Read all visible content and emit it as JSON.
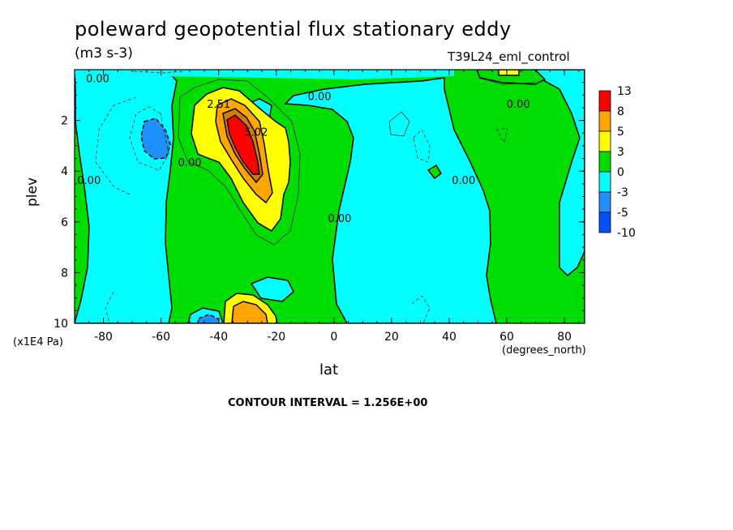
{
  "header": {
    "title": "poleward geopotential flux stationary eddy",
    "units": "(m3 s-3)",
    "run_name": "T39L24_eml_control"
  },
  "footer": {
    "contour_interval": "CONTOUR INTERVAL = 1.256E+00"
  },
  "colors": {
    "cyan": "#00ffff",
    "green": "#00dd00",
    "yellow": "#ffff00",
    "orange": "#ffa500",
    "dark_orange": "#d27d00",
    "red": "#ff0000",
    "blue_mid": "#1e90ff",
    "blue_dark": "#0050ff"
  },
  "chart_data": {
    "type": "heatmap",
    "title": "poleward geopotential flux stationary eddy",
    "subtitle": "(m3 s-3)",
    "xlabel": "lat",
    "x_units": "(degrees_north)",
    "ylabel": "plev",
    "y_units": "(x1E4 Pa)",
    "xlim": [
      -90,
      87
    ],
    "ylim": [
      0,
      10
    ],
    "y_inverted": true,
    "x_ticks": [
      -80,
      -60,
      -40,
      -20,
      0,
      20,
      40,
      60,
      80
    ],
    "x_tick_labels": [
      "-80",
      "-60",
      "-40",
      "-20",
      "0",
      "20",
      "40",
      "60",
      "80"
    ],
    "y_ticks": [
      2,
      4,
      6,
      8,
      10
    ],
    "y_tick_labels": [
      "2",
      "4",
      "6",
      "8",
      "10"
    ],
    "colorbar": {
      "labels": [
        "13",
        "8",
        "5",
        "3",
        "0",
        "-3",
        "-5",
        "-10"
      ],
      "colors": [
        "#ff0000",
        "#ffa500",
        "#ffff00",
        "#00dd00",
        "#00ffff",
        "#1e90ff",
        "#0050ff"
      ]
    },
    "contour_labels": [
      {
        "text": "0.00",
        "lat": -82,
        "plev": 0.5
      },
      {
        "text": "2.51",
        "lat": -40,
        "plev": 1.5
      },
      {
        "text": "0.00",
        "lat": -5,
        "plev": 1.2
      },
      {
        "text": "0.00",
        "lat": 64,
        "plev": 1.5
      },
      {
        "text": "5.02",
        "lat": -27,
        "plev": 2.6
      },
      {
        "text": "0.00",
        "lat": -85,
        "plev": 4.5
      },
      {
        "text": "0.00",
        "lat": -50,
        "plev": 3.8
      },
      {
        "text": "0.00",
        "lat": 45,
        "plev": 4.5
      },
      {
        "text": "0.00",
        "lat": 2,
        "plev": 6.0
      }
    ],
    "contour_interval": 1.256,
    "legend": "right"
  }
}
